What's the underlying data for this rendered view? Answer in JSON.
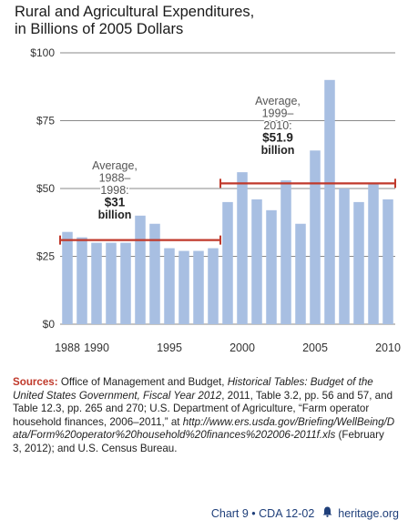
{
  "title_line1": "Rural and Agricultural Expenditures,",
  "title_line2": "in Billions of 2005 Dollars",
  "chart_data": {
    "type": "bar",
    "title": "Rural and Agricultural Expenditures, in Billions of 2005 Dollars",
    "categories": [
      1988,
      1989,
      1990,
      1991,
      1992,
      1993,
      1994,
      1995,
      1996,
      1997,
      1998,
      1999,
      2000,
      2001,
      2002,
      2003,
      2004,
      2005,
      2006,
      2007,
      2008,
      2009,
      2010
    ],
    "values": [
      34,
      32,
      30,
      30,
      30,
      40,
      37,
      28,
      27,
      27,
      28,
      45,
      56,
      46,
      42,
      53,
      37,
      64,
      90,
      50,
      45,
      52,
      46
    ],
    "ylim": [
      0,
      100
    ],
    "yticks": [
      0,
      25,
      50,
      75,
      100
    ],
    "ytick_labels": [
      "$0",
      "$25",
      "$50",
      "$75",
      "$100"
    ],
    "xtick_labels": [
      "1988",
      "1990",
      "1995",
      "2000",
      "2005",
      "2010"
    ],
    "xtick_values": [
      1988,
      1990,
      1995,
      2000,
      2005,
      2010
    ],
    "grid": true,
    "bar_color": "#a8bfe2",
    "average_color": "#c0392b",
    "averages": [
      {
        "start": 1988,
        "end": 1998,
        "value": 31,
        "text_average": "Average,",
        "text_period": "1988–",
        "text_period2": "1998:",
        "text_value": "$31",
        "text_unit": "billion"
      },
      {
        "start": 1999,
        "end": 2010,
        "value": 51.9,
        "text_average": "Average,",
        "text_period": "1999–",
        "text_period2": "2010:",
        "text_value": "$51.9",
        "text_unit": "billion"
      }
    ]
  },
  "sources": {
    "label": "Sources:",
    "text1": " Office of Management and Budget, ",
    "italic1": "Historical Tables: Budget of the United States Government, Fiscal Year 2012",
    "text2": ", 2011, Table 3.2, pp. 56 and 57, and Table 12.3, pp. 265 and 270; U.S. Department of Agriculture, “Farm operator household finances, 2006–2011,” at ",
    "italic2": "http://www.ers.usda.gov/Briefing/WellBeing/Data/Form%20operator%20household%20finances%202006-2011f.xls",
    "text3": " (February 3, 2012); and U.S. Census Bureau."
  },
  "footer": {
    "chart_label": "Chart 9 • CDA 12-02",
    "bell_icon": "liberty-bell-icon",
    "site": "heritage.org"
  }
}
